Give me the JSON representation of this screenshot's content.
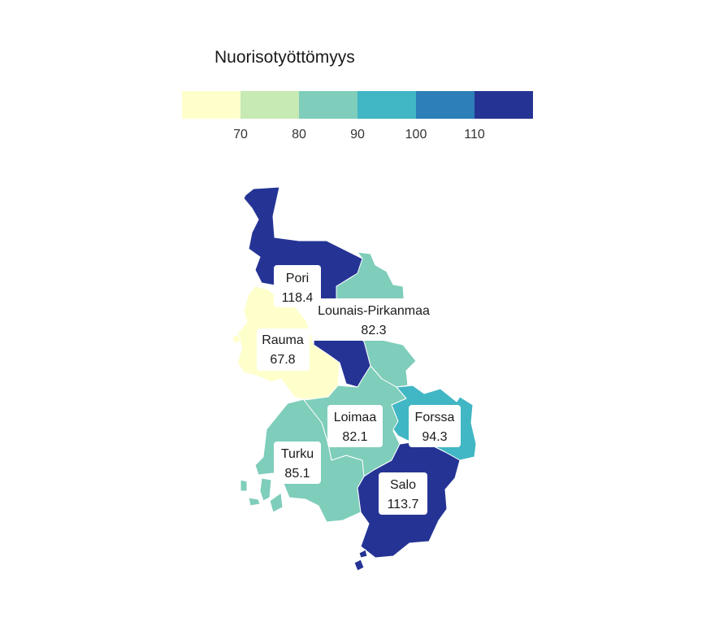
{
  "legend": {
    "title": "Nuorisotyöttömyys",
    "bins": [
      {
        "from": 60,
        "to": 70,
        "color": "#ffffcc"
      },
      {
        "from": 70,
        "to": 80,
        "color": "#c7e9b4"
      },
      {
        "from": 80,
        "to": 90,
        "color": "#7fcdbb"
      },
      {
        "from": 90,
        "to": 100,
        "color": "#41b6c4"
      },
      {
        "from": 100,
        "to": 110,
        "color": "#2c7fb8"
      },
      {
        "from": 110,
        "to": 120,
        "color": "#253494"
      }
    ],
    "ticks": [
      "70",
      "80",
      "90",
      "100",
      "110"
    ]
  },
  "regions": [
    {
      "name": "Pori",
      "value": "118.4",
      "color": "#253494"
    },
    {
      "name": "Lounais-Pirkanmaa",
      "value": "82.3",
      "color": "#7fcdbb"
    },
    {
      "name": "Rauma",
      "value": "67.8",
      "color": "#ffffcc"
    },
    {
      "name": "Loimaa",
      "value": "82.1",
      "color": "#7fcdbb"
    },
    {
      "name": "Forssa",
      "value": "94.3",
      "color": "#41b6c4"
    },
    {
      "name": "Turku",
      "value": "85.1",
      "color": "#7fcdbb"
    },
    {
      "name": "Salo",
      "value": "113.7",
      "color": "#253494"
    }
  ]
}
